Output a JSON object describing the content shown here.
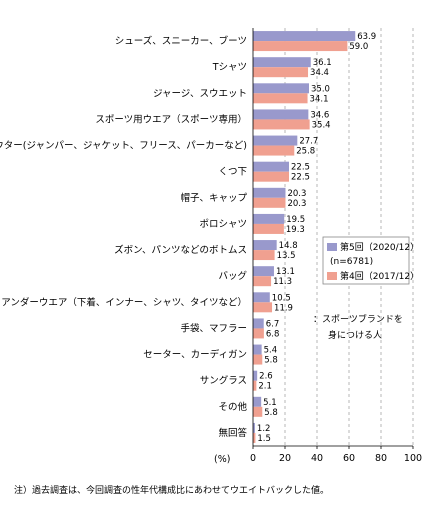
{
  "chart_data": {
    "type": "bar",
    "orientation": "horizontal",
    "categories": [
      "シューズ、スニーカー、ブーツ",
      "Tシャツ",
      "ジャージ、スウエット",
      "スポーツ用ウエア（スポーツ専用）",
      "アウター(ジャンパー、ジャケット、フリース、パーカーなど)",
      "くつ下",
      "帽子、キャップ",
      "ポロシャツ",
      "ズボン、パンツなどのボトムス",
      "バッグ",
      "アンダーウエア（下着、インナー、シャツ、タイツなど）",
      "手袋、マフラー",
      "セーター、カーディガン",
      "サングラス",
      "その他",
      "無回答"
    ],
    "series": [
      {
        "name": "第5回（2020/12）",
        "color": "#9999cc",
        "values": [
          63.9,
          36.1,
          35.0,
          34.6,
          27.7,
          22.5,
          20.3,
          19.5,
          14.8,
          13.1,
          10.5,
          6.7,
          5.4,
          2.6,
          5.1,
          1.2
        ]
      },
      {
        "name": "第4回（2017/12）",
        "color": "#f0a090",
        "values": [
          59.0,
          34.4,
          34.1,
          35.4,
          25.8,
          22.5,
          20.3,
          19.3,
          13.5,
          11.3,
          11.9,
          6.8,
          5.8,
          2.1,
          5.8,
          1.5
        ]
      }
    ],
    "legend_n": "(n=6781)",
    "annotation": "：スポーツブランドを身につける人",
    "xlabel": "(%)",
    "xlim": [
      0,
      100
    ],
    "xticks": [
      0,
      20,
      40,
      60,
      80,
      100
    ],
    "grid": "vertical dashed",
    "legend_position": "right-middle",
    "footnote": "注）過去調査は、今回調査の性年代構成比にあわせてウエイトバックした値。"
  }
}
